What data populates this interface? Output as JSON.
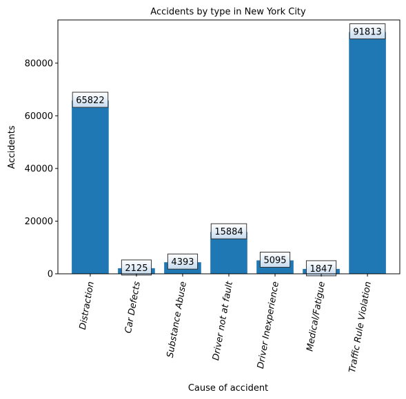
{
  "chart_data": {
    "type": "bar",
    "title": "Accidents by type in New York City",
    "xlabel": "Cause of accident",
    "ylabel": "Accidents",
    "categories": [
      "Distraction",
      "Car Defects",
      "Substance Abuse",
      "Driver not at fault",
      "Driver Inexperience",
      "Medical/Fatigue",
      "Traffic Rule Violation"
    ],
    "values": [
      65822,
      2125,
      4393,
      15884,
      5095,
      1847,
      91813
    ],
    "ylim": [
      0,
      96400
    ],
    "yticks": [
      0,
      20000,
      40000,
      60000,
      80000
    ],
    "bar_color": "#1f77b4",
    "grid": false,
    "legend": "none"
  }
}
